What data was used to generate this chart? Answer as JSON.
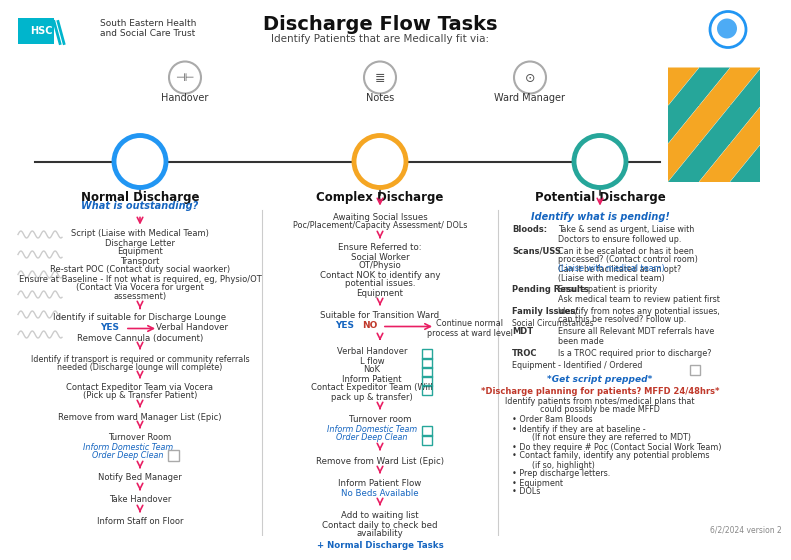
{
  "title": "Discharge Flow Tasks",
  "subtitle": "Identify Patients that are Medically fit via:",
  "bg_color": "#ffffff",
  "hsc_color": "#00b5cc",
  "blue_circle": "#2196F3",
  "gold_circle": "#F5A623",
  "teal_circle": "#26A69A",
  "link_blue": "#1565C0",
  "red_arrow": "#E91E63",
  "red_text": "#C0392B",
  "teal_dec": "#26A69A",
  "gold_dec": "#F5A623",
  "gray_line": "#888888",
  "dark_text": "#222222",
  "version": "6/2/2024 version 2",
  "top_labels": [
    "Handover",
    "Notes",
    "Ward Manager"
  ],
  "col_labels": [
    "Normal Discharge",
    "Complex Discharge",
    "Potential Discharge"
  ]
}
